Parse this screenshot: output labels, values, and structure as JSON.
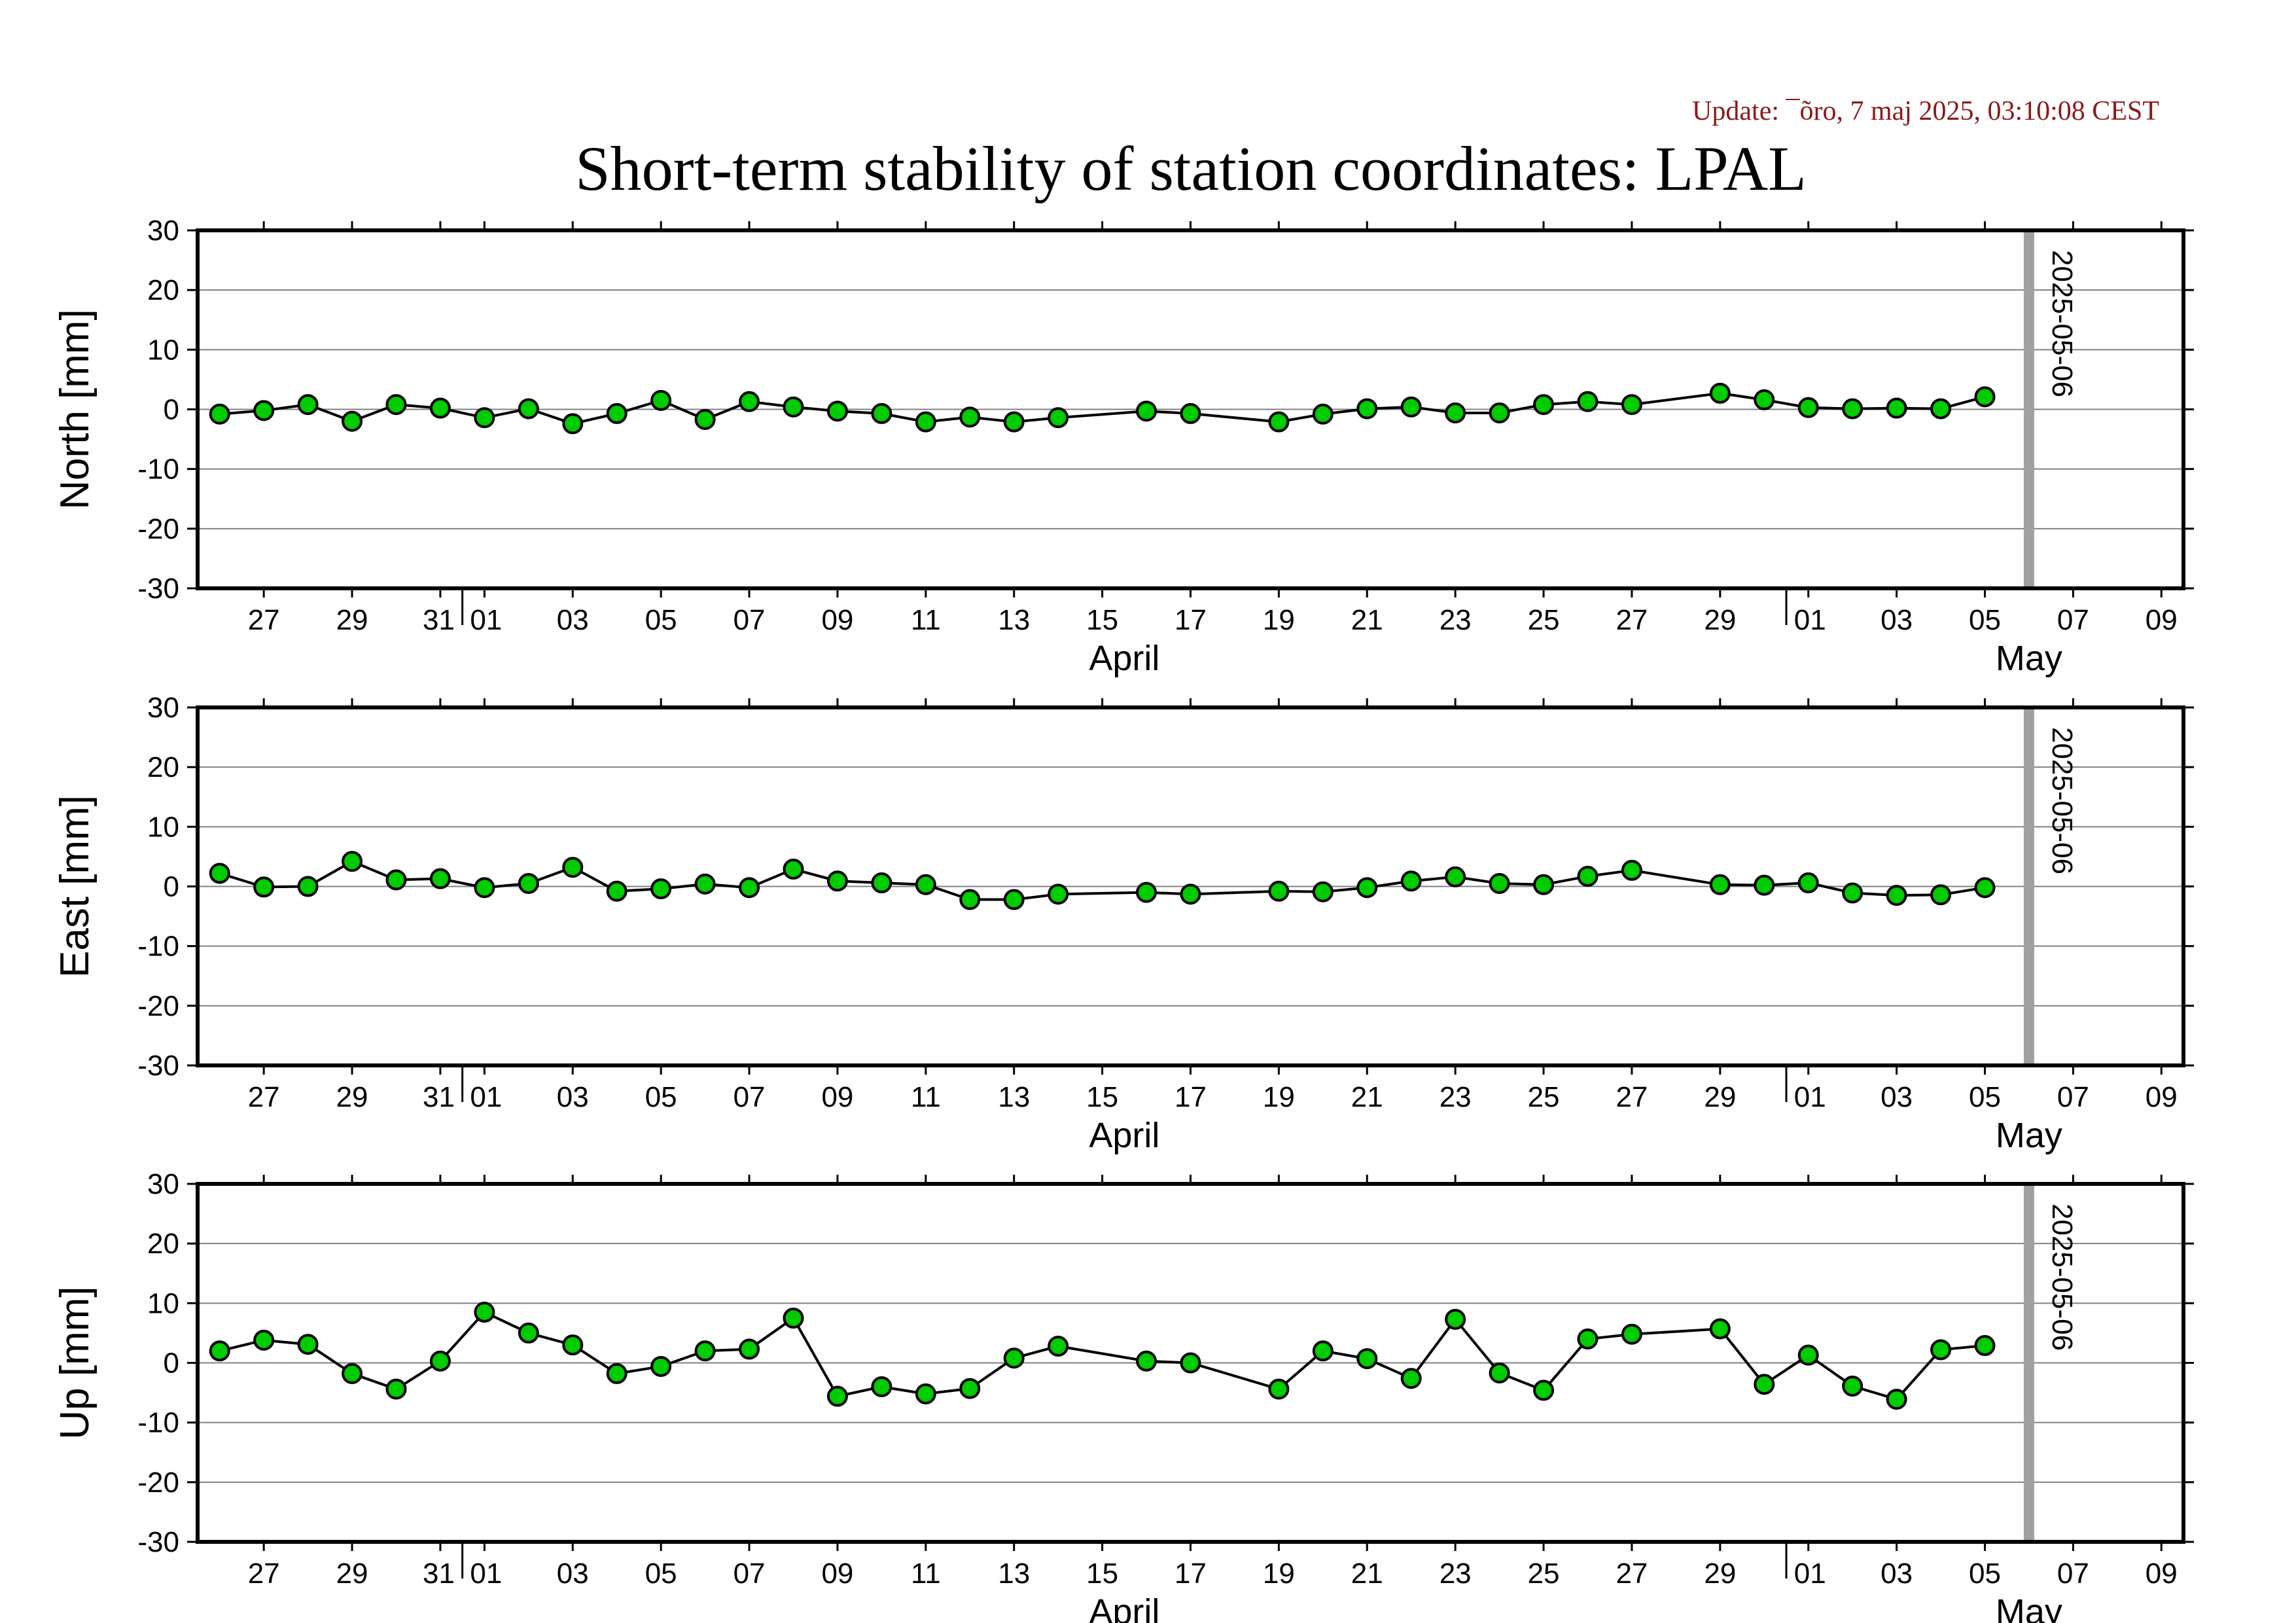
{
  "update_text": "Update: ¯õro, 7 maj 2025, 03:10:08 CEST",
  "title": "Short-term stability of station coordinates: LPAL",
  "colors": {
    "marker_fill": "#00cc00",
    "marker_stroke": "#000000",
    "grid": "#808080",
    "marker_line": "#a0a0a0",
    "update_text": "#8b1a1a"
  },
  "chart_data": [
    {
      "type": "line",
      "name": "north",
      "ylabel": "North [mm]",
      "ylim": [
        -30,
        30
      ],
      "yticks": [
        -30,
        -20,
        -10,
        0,
        10,
        20,
        30
      ],
      "xlim": [
        "2025-03-25T12:00",
        "2025-05-09T12:00"
      ],
      "vline": "2025-05-06",
      "vline_label": "2025-05-06",
      "series": [
        {
          "x": [
            "2025-03-26",
            "2025-03-27",
            "2025-03-28",
            "2025-03-29",
            "2025-03-30",
            "2025-03-31",
            "2025-04-01",
            "2025-04-02",
            "2025-04-03",
            "2025-04-04",
            "2025-04-05",
            "2025-04-06",
            "2025-04-07",
            "2025-04-08",
            "2025-04-09",
            "2025-04-10",
            "2025-04-11",
            "2025-04-12",
            "2025-04-13",
            "2025-04-14",
            "2025-04-16",
            "2025-04-17",
            "2025-04-19",
            "2025-04-20",
            "2025-04-21",
            "2025-04-22",
            "2025-04-23",
            "2025-04-24",
            "2025-04-25",
            "2025-04-26",
            "2025-04-27",
            "2025-04-29",
            "2025-04-30",
            "2025-05-01",
            "2025-05-02",
            "2025-05-03",
            "2025-05-04",
            "2025-05-05"
          ],
          "y": [
            -0.8,
            -0.2,
            0.8,
            -2.0,
            0.8,
            0.2,
            -1.4,
            0.1,
            -2.4,
            -0.7,
            1.5,
            -1.7,
            1.3,
            0.4,
            -0.3,
            -0.7,
            -2.1,
            -1.3,
            -2.1,
            -1.4,
            -0.3,
            -0.7,
            -2.1,
            -0.8,
            0.1,
            0.4,
            -0.6,
            -0.6,
            0.8,
            1.3,
            0.8,
            2.7,
            1.6,
            0.3,
            0.1,
            0.2,
            0.1,
            2.1
          ]
        }
      ]
    },
    {
      "type": "line",
      "name": "east",
      "ylabel": "East [mm]",
      "ylim": [
        -30,
        30
      ],
      "yticks": [
        -30,
        -20,
        -10,
        0,
        10,
        20,
        30
      ],
      "xlim": [
        "2025-03-25T12:00",
        "2025-05-09T12:00"
      ],
      "vline": "2025-05-06",
      "vline_label": "2025-05-06",
      "series": [
        {
          "x": [
            "2025-03-26",
            "2025-03-27",
            "2025-03-28",
            "2025-03-29",
            "2025-03-30",
            "2025-03-31",
            "2025-04-01",
            "2025-04-02",
            "2025-04-03",
            "2025-04-04",
            "2025-04-05",
            "2025-04-06",
            "2025-04-07",
            "2025-04-08",
            "2025-04-09",
            "2025-04-10",
            "2025-04-11",
            "2025-04-12",
            "2025-04-13",
            "2025-04-14",
            "2025-04-16",
            "2025-04-17",
            "2025-04-19",
            "2025-04-20",
            "2025-04-21",
            "2025-04-22",
            "2025-04-23",
            "2025-04-24",
            "2025-04-25",
            "2025-04-26",
            "2025-04-27",
            "2025-04-29",
            "2025-04-30",
            "2025-05-01",
            "2025-05-02",
            "2025-05-03",
            "2025-05-04",
            "2025-05-05"
          ],
          "y": [
            2.2,
            -0.1,
            0.0,
            4.2,
            1.1,
            1.3,
            -0.2,
            0.5,
            3.2,
            -0.8,
            -0.4,
            0.4,
            -0.2,
            2.9,
            0.9,
            0.6,
            0.3,
            -2.2,
            -2.2,
            -1.3,
            -1.0,
            -1.3,
            -0.8,
            -0.9,
            -0.2,
            0.9,
            1.6,
            0.5,
            0.3,
            1.7,
            2.7,
            0.3,
            0.2,
            0.6,
            -1.1,
            -1.5,
            -1.4,
            -0.2
          ]
        }
      ]
    },
    {
      "type": "line",
      "name": "up",
      "ylabel": "Up [mm]",
      "ylim": [
        -30,
        30
      ],
      "yticks": [
        -30,
        -20,
        -10,
        0,
        10,
        20,
        30
      ],
      "xlim": [
        "2025-03-25T12:00",
        "2025-05-09T12:00"
      ],
      "vline": "2025-05-06",
      "vline_label": "2025-05-06",
      "series": [
        {
          "x": [
            "2025-03-26",
            "2025-03-27",
            "2025-03-28",
            "2025-03-29",
            "2025-03-30",
            "2025-03-31",
            "2025-04-01",
            "2025-04-02",
            "2025-04-03",
            "2025-04-04",
            "2025-04-05",
            "2025-04-06",
            "2025-04-07",
            "2025-04-08",
            "2025-04-09",
            "2025-04-10",
            "2025-04-11",
            "2025-04-12",
            "2025-04-13",
            "2025-04-14",
            "2025-04-16",
            "2025-04-17",
            "2025-04-19",
            "2025-04-20",
            "2025-04-21",
            "2025-04-22",
            "2025-04-23",
            "2025-04-24",
            "2025-04-25",
            "2025-04-26",
            "2025-04-27",
            "2025-04-29",
            "2025-04-30",
            "2025-05-01",
            "2025-05-02",
            "2025-05-03",
            "2025-05-04",
            "2025-05-05"
          ],
          "y": [
            2.0,
            3.8,
            3.1,
            -1.8,
            -4.4,
            0.3,
            8.5,
            5.0,
            3.0,
            -1.8,
            -0.6,
            2.0,
            2.3,
            7.5,
            -5.6,
            -4.0,
            -5.2,
            -4.3,
            0.8,
            2.8,
            0.3,
            0.0,
            -4.4,
            2.0,
            0.7,
            -2.6,
            7.3,
            -1.7,
            -4.6,
            4.0,
            4.8,
            5.7,
            -3.6,
            1.3,
            -3.9,
            -6.1,
            2.2,
            2.9
          ]
        }
      ]
    }
  ],
  "x_axis": {
    "day_ticks": [
      "2025-03-27",
      "2025-03-29",
      "2025-03-31",
      "2025-04-01",
      "2025-04-03",
      "2025-04-05",
      "2025-04-07",
      "2025-04-09",
      "2025-04-11",
      "2025-04-13",
      "2025-04-15",
      "2025-04-17",
      "2025-04-19",
      "2025-04-21",
      "2025-04-23",
      "2025-04-25",
      "2025-04-27",
      "2025-04-29",
      "2025-05-01",
      "2025-05-03",
      "2025-05-05",
      "2025-05-07",
      "2025-05-09"
    ],
    "day_labels": [
      "27",
      "29",
      "31",
      "01",
      "03",
      "05",
      "07",
      "09",
      "11",
      "13",
      "15",
      "17",
      "19",
      "21",
      "23",
      "25",
      "27",
      "29",
      "01",
      "03",
      "05",
      "07",
      "09"
    ],
    "month_boundaries": [
      "2025-03-31T12:00",
      "2025-04-30T12:00"
    ],
    "month_labels": [
      {
        "text": "April",
        "center": "2025-04-15T12:00"
      },
      {
        "text": "May",
        "center": "2025-05-06T00:00"
      }
    ]
  }
}
